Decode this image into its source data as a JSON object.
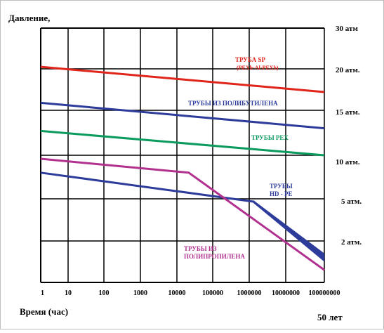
{
  "chart_data": {
    "type": "line",
    "ylabel": "Давление,",
    "xlabel": "Время (час)",
    "x_note": "50 лет",
    "x_ticks": [
      "1",
      "10",
      "100",
      "1000",
      "10000",
      "100000",
      "1000000",
      "10000000",
      "100000000"
    ],
    "x_scale": "log",
    "y_ticks": [
      "30 атм",
      "20 атм.",
      "15 атм.",
      "10 атм.",
      "5 атм.",
      "2 атм."
    ],
    "grid": true,
    "series": [
      {
        "name": "ТРУБА SP",
        "subname": "(PEXb-Al-PEXb)",
        "color": "#e0251b",
        "points": [
          [
            1,
            20.5
          ],
          [
            100000000,
            17.2
          ]
        ]
      },
      {
        "name": "ТРУБЫ ИЗ ПОЛИБУТИЛЕНА",
        "color": "#2d3c9a",
        "points": [
          [
            1,
            15.9
          ],
          [
            100000000,
            13.0
          ]
        ]
      },
      {
        "name": "ТРУБЫ PEX",
        "color": "#0c9b5f",
        "points": [
          [
            1,
            12.7
          ],
          [
            100000000,
            10.0
          ]
        ]
      },
      {
        "name": "ТРУБЫ",
        "subname": "HD - PE",
        "color": "#2d3c9a",
        "points": [
          [
            1,
            8.0
          ],
          [
            1000000,
            4.8
          ],
          [
            100000000,
            1.2
          ]
        ]
      },
      {
        "name": "ТРУБЫ ИЗ",
        "subname": "ПОЛИПРОПИЛЕНА",
        "color": "#b2318f",
        "points": [
          [
            1,
            9.6
          ],
          [
            15000,
            8.0
          ],
          [
            100000000,
            0.6
          ]
        ]
      }
    ]
  }
}
